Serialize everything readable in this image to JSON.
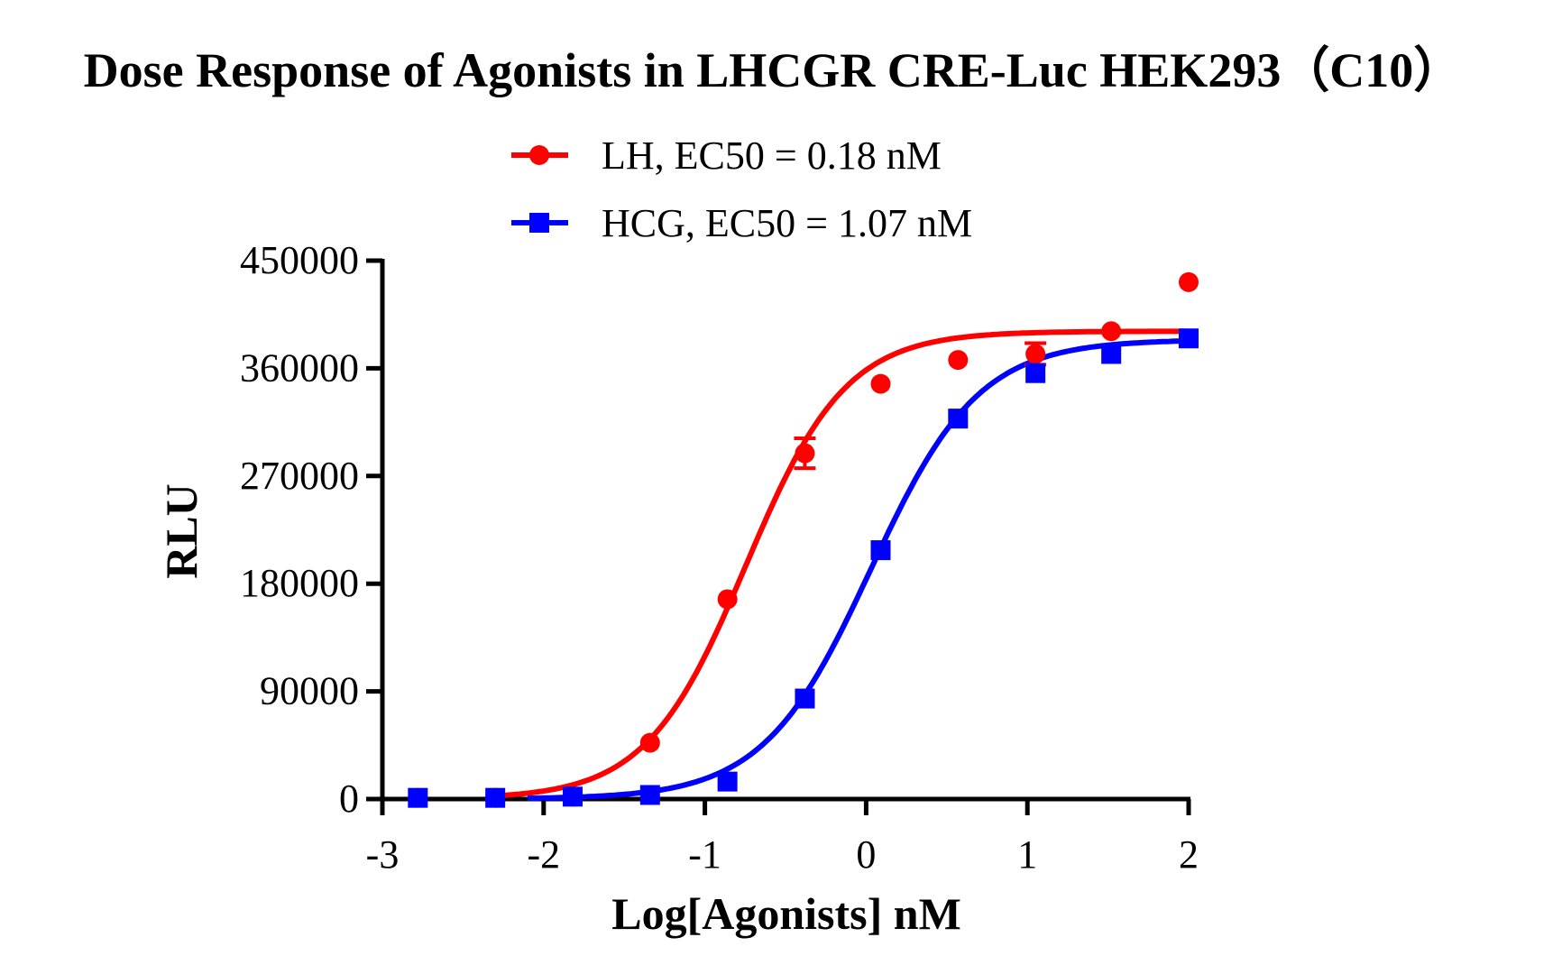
{
  "chart_data": {
    "type": "scatter",
    "title": "Dose Response of Agonists in LHCGR CRE-Luc HEK293（C10）",
    "xlabel": "Log[Agonists] nM",
    "ylabel": "RLU",
    "xlim": [
      -3,
      2
    ],
    "ylim": [
      0,
      450000
    ],
    "xticks": [
      "-3",
      "-2",
      "-1",
      "0",
      "1",
      "2"
    ],
    "yticks": [
      "0",
      "90000",
      "180000",
      "270000",
      "360000",
      "450000"
    ],
    "legend_position": "top-center",
    "grid": false,
    "series": [
      {
        "name": "LH, EC50 = 0.18 nM",
        "color": "#ff0000",
        "marker": "circle",
        "x": [
          -2.78,
          -2.3,
          -1.82,
          -1.34,
          -0.86,
          -0.38,
          0.09,
          0.57,
          1.05,
          1.52,
          2.0
        ],
        "y": [
          1000,
          1000,
          2000,
          47000,
          167000,
          289000,
          347000,
          367000,
          372000,
          391000,
          432000
        ],
        "error": [
          0,
          0,
          0,
          0,
          0,
          12500,
          0,
          0,
          9000,
          0,
          0
        ],
        "fit": {
          "model": "4PL",
          "bottom": 0,
          "top": 391000,
          "logEC50": -0.745,
          "hill": 1.4,
          "x_start": -2.35
        }
      },
      {
        "name": "HCG, EC50 = 1.07 nM",
        "color": "#0000ff",
        "marker": "square",
        "x": [
          -2.78,
          -2.3,
          -1.82,
          -1.34,
          -0.86,
          -0.38,
          0.09,
          0.57,
          1.05,
          1.52,
          2.0
        ],
        "y": [
          1000,
          1000,
          2000,
          3400,
          14600,
          84000,
          208000,
          318000,
          356000,
          372000,
          385000
        ],
        "error": [
          0,
          0,
          0,
          0,
          0,
          0,
          0,
          0,
          0,
          0,
          0
        ],
        "fit": {
          "model": "4PL",
          "bottom": 0,
          "top": 384000,
          "logEC50": 0.029,
          "hill": 1.3,
          "x_start": -2.1
        }
      }
    ]
  }
}
